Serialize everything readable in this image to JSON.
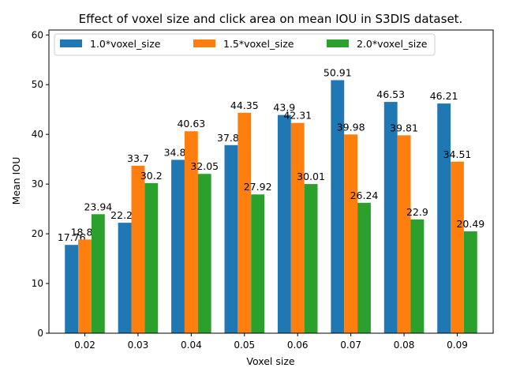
{
  "chart_data": {
    "type": "bar",
    "title": "Effect of voxel size and click area on mean IOU in S3DIS dataset.",
    "xlabel": "Voxel size",
    "ylabel": "Mean IOU",
    "ylim": [
      0,
      61
    ],
    "yticks": [
      0,
      10,
      20,
      30,
      40,
      50,
      60
    ],
    "categories": [
      "0.02",
      "0.03",
      "0.04",
      "0.05",
      "0.06",
      "0.07",
      "0.08",
      "0.09"
    ],
    "series": [
      {
        "name": "1.0*voxel_size",
        "color": "#1f77b4",
        "values": [
          17.76,
          22.22,
          34.88,
          37.84,
          43.9,
          50.91,
          46.53,
          46.21
        ]
      },
      {
        "name": "1.5*voxel_size",
        "color": "#ff7f0e",
        "values": [
          18.85,
          33.7,
          40.63,
          44.35,
          42.31,
          39.98,
          39.81,
          34.51
        ]
      },
      {
        "name": "2.0*voxel_size",
        "color": "#2ca02c",
        "values": [
          23.94,
          30.2,
          32.05,
          27.92,
          30.01,
          26.24,
          22.9,
          20.49
        ]
      }
    ],
    "legend": "top-left",
    "grid": false
  }
}
